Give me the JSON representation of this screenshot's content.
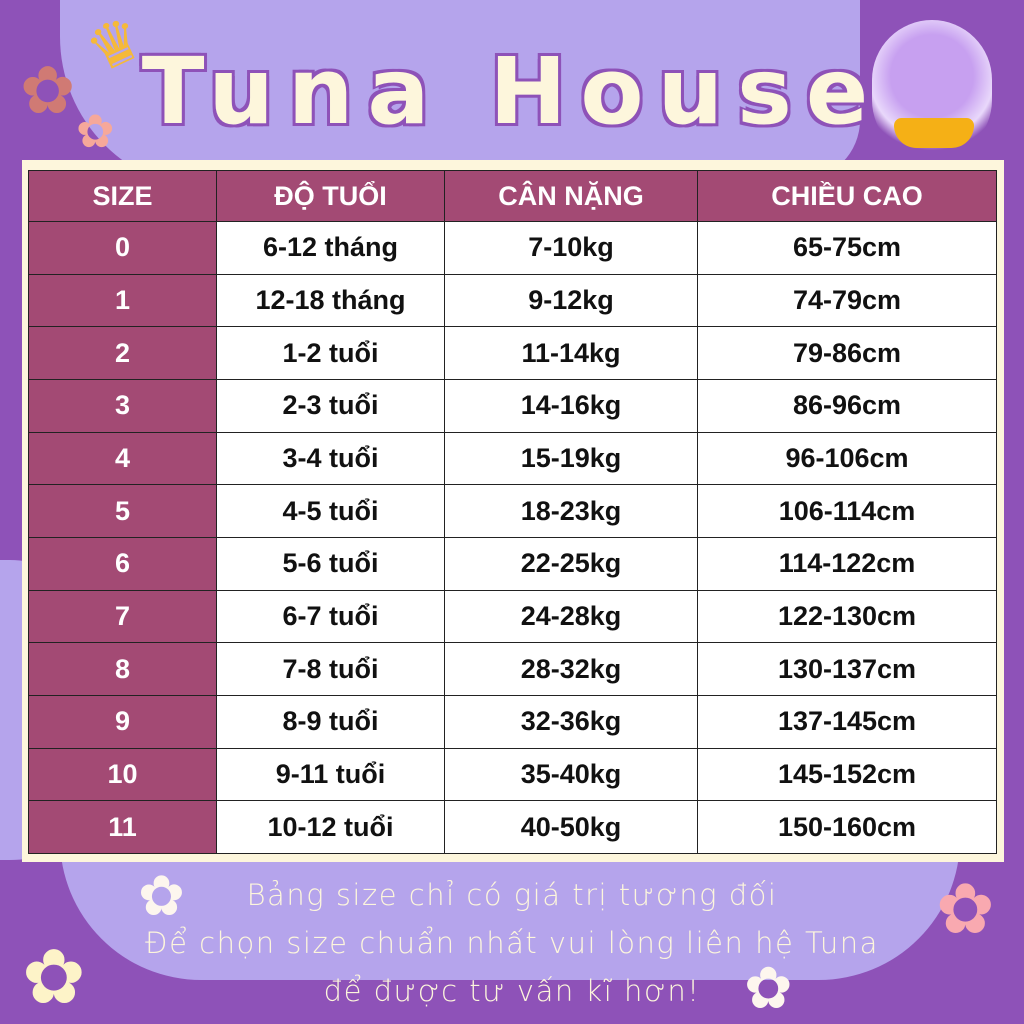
{
  "brand": {
    "title": "Tuna House",
    "colors": {
      "dark_purple": "#8e52b8",
      "lavender": "#b5a4ec",
      "header": "#a34a74",
      "cream": "#fdf6dc"
    }
  },
  "table": {
    "headers": [
      "SIZE",
      "ĐỘ TUỔI",
      "CÂN NẶNG",
      "CHIỀU CAO"
    ],
    "rows": [
      [
        "0",
        "6-12 tháng",
        "7-10kg",
        "65-75cm"
      ],
      [
        "1",
        "12-18 tháng",
        "9-12kg",
        "74-79cm"
      ],
      [
        "2",
        "1-2 tuổi",
        "11-14kg",
        "79-86cm"
      ],
      [
        "3",
        "2-3 tuổi",
        "14-16kg",
        "86-96cm"
      ],
      [
        "4",
        "3-4 tuổi",
        "15-19kg",
        "96-106cm"
      ],
      [
        "5",
        "4-5 tuổi",
        "18-23kg",
        "106-114cm"
      ],
      [
        "6",
        "5-6 tuổi",
        "22-25kg",
        "114-122cm"
      ],
      [
        "7",
        "6-7 tuổi",
        "24-28kg",
        "122-130cm"
      ],
      [
        "8",
        "7-8 tuổi",
        "28-32kg",
        "130-137cm"
      ],
      [
        "9",
        "8-9 tuổi",
        "32-36kg",
        "137-145cm"
      ],
      [
        "10",
        "9-11 tuổi",
        "35-40kg",
        "145-152cm"
      ],
      [
        "11",
        "10-12 tuổi",
        "40-50kg",
        "150-160cm"
      ]
    ]
  },
  "notes": [
    "Bảng size chỉ có giá trị tương đối",
    "Để chọn size chuẩn nhất vui lòng liên hệ Tuna",
    "để được tư vấn kĩ hơn!"
  ],
  "icons": [
    "crown-icon",
    "flower-icon",
    "octopus-mascot-icon"
  ]
}
